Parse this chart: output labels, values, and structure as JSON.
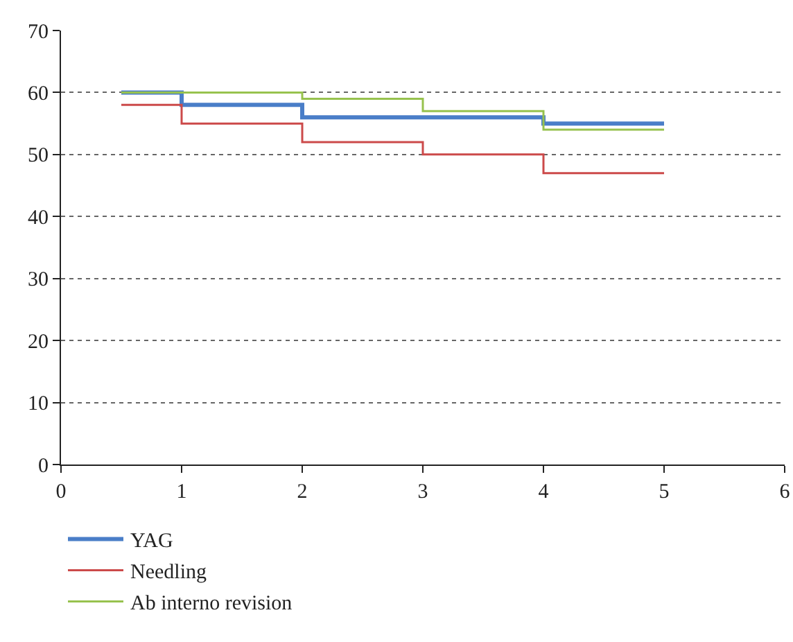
{
  "chart_data": {
    "type": "step",
    "x": [
      0.5,
      1,
      2,
      3,
      4,
      5
    ],
    "series": [
      {
        "name": "YAG",
        "color": "#4a7ec8",
        "values": [
          60,
          58,
          56,
          56,
          55,
          55
        ]
      },
      {
        "name": "Needling",
        "color": "#cc4a4a",
        "values": [
          58,
          55,
          52,
          50,
          47,
          47
        ]
      },
      {
        "name": "Ab interno revision",
        "color": "#97c24e",
        "values": [
          60,
          60,
          59,
          57,
          54,
          54
        ]
      }
    ],
    "xlim": [
      0,
      6
    ],
    "xticks": [
      0,
      1,
      2,
      3,
      4,
      5,
      6
    ],
    "ylim": [
      0,
      70
    ],
    "yticks": [
      0,
      10,
      20,
      30,
      40,
      50,
      60,
      70
    ],
    "grid": "y",
    "legend": "bottom left",
    "marker": "none",
    "line_style": "solid"
  }
}
